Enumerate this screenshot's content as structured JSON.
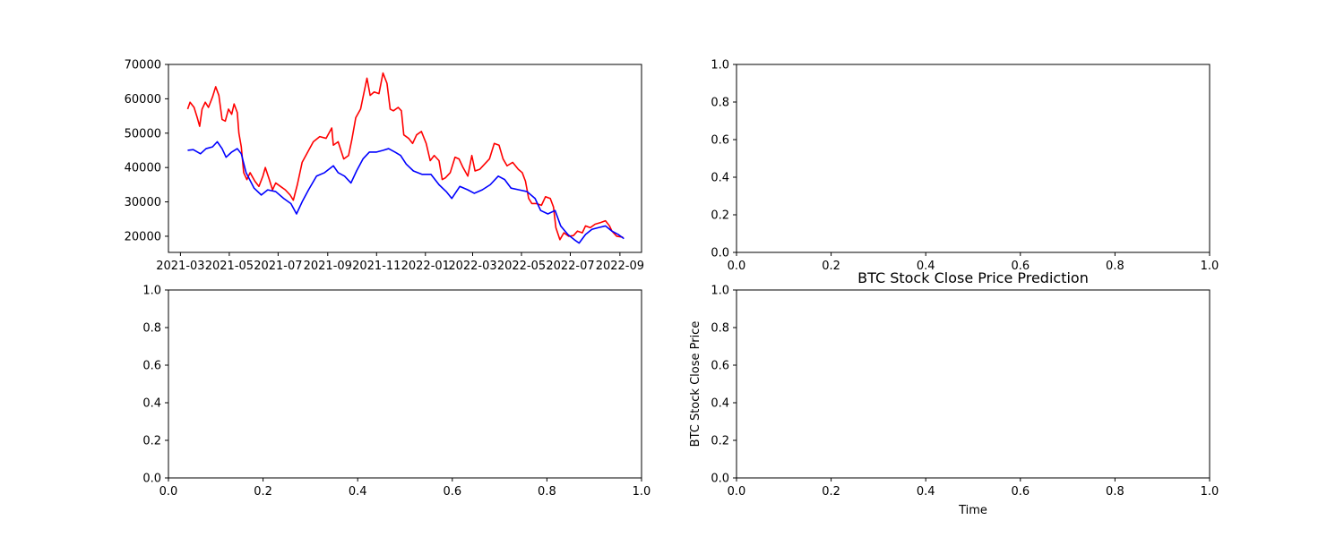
{
  "chart_data": [
    {
      "type": "line",
      "title": "",
      "xlabel": "",
      "ylabel": "",
      "xlim": [
        "2021-02-14",
        "2022-09-28"
      ],
      "ylim": [
        15300,
        70000
      ],
      "x_ticks": [
        "2021-03",
        "2021-05",
        "2021-07",
        "2021-09",
        "2021-11",
        "2022-01",
        "2022-03",
        "2022-05",
        "2022-07",
        "2022-09"
      ],
      "y_ticks": [
        20000,
        30000,
        40000,
        50000,
        60000,
        70000
      ],
      "grid": false,
      "series": [
        {
          "color": "#ff0000",
          "points": [
            [
              "2021-03-10",
              57000
            ],
            [
              "2021-03-13",
              59000
            ],
            [
              "2021-03-18",
              57500
            ],
            [
              "2021-03-22",
              54500
            ],
            [
              "2021-03-25",
              52000
            ],
            [
              "2021-03-28",
              57000
            ],
            [
              "2021-04-01",
              59000
            ],
            [
              "2021-04-05",
              57500
            ],
            [
              "2021-04-10",
              60500
            ],
            [
              "2021-04-14",
              63500
            ],
            [
              "2021-04-18",
              61000
            ],
            [
              "2021-04-22",
              54000
            ],
            [
              "2021-04-26",
              53500
            ],
            [
              "2021-04-30",
              57000
            ],
            [
              "2021-05-04",
              55500
            ],
            [
              "2021-05-07",
              58500
            ],
            [
              "2021-05-11",
              56000
            ],
            [
              "2021-05-13",
              50000
            ],
            [
              "2021-05-16",
              46000
            ],
            [
              "2021-05-19",
              38500
            ],
            [
              "2021-05-23",
              36500
            ],
            [
              "2021-05-27",
              38500
            ],
            [
              "2021-06-02",
              36000
            ],
            [
              "2021-06-07",
              34500
            ],
            [
              "2021-06-12",
              37500
            ],
            [
              "2021-06-15",
              40000
            ],
            [
              "2021-06-20",
              36500
            ],
            [
              "2021-06-24",
              33500
            ],
            [
              "2021-06-28",
              35500
            ],
            [
              "2021-07-04",
              34500
            ],
            [
              "2021-07-10",
              33500
            ],
            [
              "2021-07-16",
              32000
            ],
            [
              "2021-07-20",
              30500
            ],
            [
              "2021-07-25",
              35000
            ],
            [
              "2021-07-31",
              41500
            ],
            [
              "2021-08-07",
              44500
            ],
            [
              "2021-08-14",
              47500
            ],
            [
              "2021-08-22",
              49000
            ],
            [
              "2021-08-30",
              48500
            ],
            [
              "2021-09-06",
              51500
            ],
            [
              "2021-09-08",
              46500
            ],
            [
              "2021-09-14",
              47500
            ],
            [
              "2021-09-21",
              42500
            ],
            [
              "2021-09-27",
              43500
            ],
            [
              "2021-10-01",
              48000
            ],
            [
              "2021-10-06",
              54500
            ],
            [
              "2021-10-12",
              57000
            ],
            [
              "2021-10-16",
              61500
            ],
            [
              "2021-10-20",
              66000
            ],
            [
              "2021-10-24",
              61000
            ],
            [
              "2021-10-29",
              62000
            ],
            [
              "2021-11-04",
              61500
            ],
            [
              "2021-11-09",
              67500
            ],
            [
              "2021-11-14",
              64500
            ],
            [
              "2021-11-18",
              57000
            ],
            [
              "2021-11-22",
              56500
            ],
            [
              "2021-11-28",
              57500
            ],
            [
              "2021-12-02",
              56500
            ],
            [
              "2021-12-05",
              49500
            ],
            [
              "2021-12-11",
              48500
            ],
            [
              "2021-12-16",
              47000
            ],
            [
              "2021-12-21",
              49500
            ],
            [
              "2021-12-27",
              50500
            ],
            [
              "2022-01-02",
              47000
            ],
            [
              "2022-01-07",
              42000
            ],
            [
              "2022-01-12",
              43500
            ],
            [
              "2022-01-18",
              42000
            ],
            [
              "2022-01-22",
              36500
            ],
            [
              "2022-01-26",
              37000
            ],
            [
              "2022-02-01",
              38500
            ],
            [
              "2022-02-07",
              43000
            ],
            [
              "2022-02-12",
              42500
            ],
            [
              "2022-02-17",
              40000
            ],
            [
              "2022-02-23",
              37500
            ],
            [
              "2022-02-28",
              43500
            ],
            [
              "2022-03-04",
              39000
            ],
            [
              "2022-03-10",
              39500
            ],
            [
              "2022-03-16",
              41000
            ],
            [
              "2022-03-22",
              42500
            ],
            [
              "2022-03-28",
              47000
            ],
            [
              "2022-04-03",
              46500
            ],
            [
              "2022-04-08",
              42500
            ],
            [
              "2022-04-13",
              40500
            ],
            [
              "2022-04-20",
              41500
            ],
            [
              "2022-04-27",
              39500
            ],
            [
              "2022-05-02",
              38500
            ],
            [
              "2022-05-06",
              36000
            ],
            [
              "2022-05-10",
              31000
            ],
            [
              "2022-05-14",
              29500
            ],
            [
              "2022-05-20",
              29500
            ],
            [
              "2022-05-26",
              29000
            ],
            [
              "2022-05-31",
              31500
            ],
            [
              "2022-06-06",
              31000
            ],
            [
              "2022-06-10",
              28500
            ],
            [
              "2022-06-13",
              22500
            ],
            [
              "2022-06-18",
              19000
            ],
            [
              "2022-06-23",
              21000
            ],
            [
              "2022-06-29",
              20000
            ],
            [
              "2022-07-05",
              20200
            ],
            [
              "2022-07-10",
              21500
            ],
            [
              "2022-07-16",
              21000
            ],
            [
              "2022-07-20",
              23000
            ],
            [
              "2022-07-26",
              22500
            ],
            [
              "2022-08-01",
              23500
            ],
            [
              "2022-08-08",
              24000
            ],
            [
              "2022-08-14",
              24500
            ],
            [
              "2022-08-19",
              23000
            ],
            [
              "2022-08-22",
              21500
            ],
            [
              "2022-08-28",
              20000
            ],
            [
              "2022-09-05",
              19700
            ]
          ]
        },
        {
          "color": "#0000ff",
          "points": [
            [
              "2021-03-10",
              45000
            ],
            [
              "2021-03-17",
              45200
            ],
            [
              "2021-03-26",
              44000
            ],
            [
              "2021-04-02",
              45500
            ],
            [
              "2021-04-10",
              46000
            ],
            [
              "2021-04-16",
              47500
            ],
            [
              "2021-04-22",
              45500
            ],
            [
              "2021-04-27",
              43000
            ],
            [
              "2021-05-04",
              44500
            ],
            [
              "2021-05-11",
              45500
            ],
            [
              "2021-05-16",
              44000
            ],
            [
              "2021-05-22",
              38500
            ],
            [
              "2021-06-01",
              34000
            ],
            [
              "2021-06-10",
              32000
            ],
            [
              "2021-06-18",
              33500
            ],
            [
              "2021-06-28",
              33000
            ],
            [
              "2021-07-08",
              31000
            ],
            [
              "2021-07-17",
              29500
            ],
            [
              "2021-07-24",
              26500
            ],
            [
              "2021-07-31",
              30000
            ],
            [
              "2021-08-08",
              33500
            ],
            [
              "2021-08-18",
              37500
            ],
            [
              "2021-08-28",
              38500
            ],
            [
              "2021-09-08",
              40500
            ],
            [
              "2021-09-14",
              38500
            ],
            [
              "2021-09-22",
              37500
            ],
            [
              "2021-09-30",
              35500
            ],
            [
              "2021-10-07",
              39000
            ],
            [
              "2021-10-15",
              42500
            ],
            [
              "2021-10-23",
              44500
            ],
            [
              "2021-11-01",
              44500
            ],
            [
              "2021-11-09",
              45000
            ],
            [
              "2021-11-16",
              45500
            ],
            [
              "2021-11-24",
              44500
            ],
            [
              "2021-12-01",
              43500
            ],
            [
              "2021-12-08",
              41000
            ],
            [
              "2021-12-17",
              39000
            ],
            [
              "2021-12-28",
              38000
            ],
            [
              "2022-01-08",
              38000
            ],
            [
              "2022-01-18",
              35000
            ],
            [
              "2022-01-27",
              33000
            ],
            [
              "2022-02-03",
              31000
            ],
            [
              "2022-02-13",
              34500
            ],
            [
              "2022-02-23",
              33500
            ],
            [
              "2022-03-03",
              32500
            ],
            [
              "2022-03-13",
              33500
            ],
            [
              "2022-03-23",
              35000
            ],
            [
              "2022-04-02",
              37500
            ],
            [
              "2022-04-10",
              36500
            ],
            [
              "2022-04-18",
              34000
            ],
            [
              "2022-04-28",
              33500
            ],
            [
              "2022-05-08",
              33000
            ],
            [
              "2022-05-18",
              31000
            ],
            [
              "2022-05-25",
              27500
            ],
            [
              "2022-06-03",
              26500
            ],
            [
              "2022-06-12",
              27500
            ],
            [
              "2022-06-19",
              23000
            ],
            [
              "2022-06-28",
              20500
            ],
            [
              "2022-07-06",
              19000
            ],
            [
              "2022-07-12",
              18000
            ],
            [
              "2022-07-20",
              20500
            ],
            [
              "2022-07-28",
              22000
            ],
            [
              "2022-08-05",
              22500
            ],
            [
              "2022-08-14",
              23000
            ],
            [
              "2022-08-22",
              21500
            ],
            [
              "2022-08-30",
              20500
            ],
            [
              "2022-09-06",
              19300
            ]
          ]
        }
      ]
    },
    {
      "type": "line",
      "title": "",
      "xlabel": "",
      "ylabel": "",
      "xlim": [
        0,
        1
      ],
      "ylim": [
        0,
        1
      ],
      "x_ticks": [
        "0.0",
        "0.2",
        "0.4",
        "0.6",
        "0.8",
        "1.0"
      ],
      "y_ticks": [
        "0.0",
        "0.2",
        "0.4",
        "0.6",
        "0.8",
        "1.0"
      ],
      "series": []
    },
    {
      "type": "line",
      "title": "",
      "xlabel": "",
      "ylabel": "",
      "xlim": [
        0,
        1
      ],
      "ylim": [
        0,
        1
      ],
      "x_ticks": [
        "0.0",
        "0.2",
        "0.4",
        "0.6",
        "0.8",
        "1.0"
      ],
      "y_ticks": [
        "0.0",
        "0.2",
        "0.4",
        "0.6",
        "0.8",
        "1.0"
      ],
      "series": []
    },
    {
      "type": "line",
      "title": "BTC Stock Close Price Prediction",
      "xlabel": "Time",
      "ylabel": "BTC Stock Close Price",
      "xlim": [
        0,
        1
      ],
      "ylim": [
        0,
        1
      ],
      "x_ticks": [
        "0.0",
        "0.2",
        "0.4",
        "0.6",
        "0.8",
        "1.0"
      ],
      "y_ticks": [
        "0.0",
        "0.2",
        "0.4",
        "0.6",
        "0.8",
        "1.0"
      ],
      "series": []
    }
  ]
}
